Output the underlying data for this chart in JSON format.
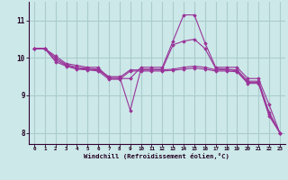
{
  "bg_color": "#cce8e8",
  "grid_color": "#aacccc",
  "line_color": "#993399",
  "marker_color": "#993399",
  "xlabel": "Windchill (Refroidissement éolien,°C)",
  "xlim": [
    -0.5,
    23.5
  ],
  "ylim": [
    7.7,
    11.5
  ],
  "yticks": [
    8,
    9,
    10,
    11
  ],
  "xticks": [
    0,
    1,
    2,
    3,
    4,
    5,
    6,
    7,
    8,
    9,
    10,
    11,
    12,
    13,
    14,
    15,
    16,
    17,
    18,
    19,
    20,
    21,
    22,
    23
  ],
  "series": [
    [
      10.25,
      10.25,
      10.05,
      9.85,
      9.8,
      9.75,
      9.75,
      9.45,
      9.45,
      9.45,
      9.75,
      9.75,
      9.75,
      10.45,
      11.15,
      11.15,
      10.4,
      9.75,
      9.75,
      9.75,
      9.45,
      9.45,
      8.75,
      8.0
    ],
    [
      10.25,
      10.25,
      10.0,
      9.82,
      9.75,
      9.72,
      9.7,
      9.5,
      9.5,
      8.6,
      9.7,
      9.7,
      9.7,
      10.35,
      10.45,
      10.5,
      10.25,
      9.72,
      9.7,
      9.68,
      9.38,
      9.38,
      8.55,
      8.0
    ],
    [
      10.25,
      10.25,
      9.95,
      9.8,
      9.72,
      9.7,
      9.68,
      9.48,
      9.48,
      9.68,
      9.68,
      9.68,
      9.68,
      9.7,
      9.75,
      9.78,
      9.75,
      9.68,
      9.68,
      9.66,
      9.35,
      9.35,
      8.5,
      8.0
    ],
    [
      10.25,
      10.25,
      9.9,
      9.78,
      9.7,
      9.68,
      9.65,
      9.43,
      9.43,
      9.65,
      9.65,
      9.65,
      9.65,
      9.67,
      9.7,
      9.73,
      9.7,
      9.65,
      9.65,
      9.63,
      9.32,
      9.32,
      8.45,
      8.0
    ]
  ]
}
